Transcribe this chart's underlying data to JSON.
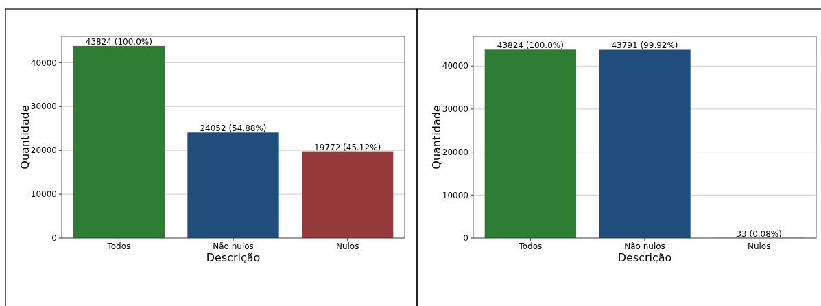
{
  "chart_data": [
    {
      "type": "bar",
      "xlabel": "Descrição",
      "ylabel": "Quantidade",
      "categories": [
        "Todos",
        "Não nulos",
        "Nulos"
      ],
      "values": [
        43824,
        24052,
        19772
      ],
      "colors": [
        "#2e7d32",
        "#1f4e7d",
        "#943a3a"
      ],
      "value_labels": [
        "43824 (100.0%)",
        "24052 (54.88%)",
        "19772 (45.12%)"
      ],
      "ylim": [
        0,
        46000
      ],
      "yticks": [
        0,
        10000,
        20000,
        30000,
        40000
      ],
      "grid": "y"
    },
    {
      "type": "bar",
      "xlabel": "Descrição",
      "ylabel": "Quantidade",
      "categories": [
        "Todos",
        "Não nulos",
        "Nulos"
      ],
      "values": [
        43824,
        43791,
        33
      ],
      "colors": [
        "#2e7d32",
        "#1f4e7d",
        "#943a3a"
      ],
      "value_labels": [
        "43824 (100.0%)",
        "43791 (99.92%)",
        "33 (0.08%)"
      ],
      "ylim": [
        0,
        46900
      ],
      "yticks": [
        0,
        10000,
        20000,
        30000,
        40000
      ],
      "grid": "y"
    }
  ]
}
